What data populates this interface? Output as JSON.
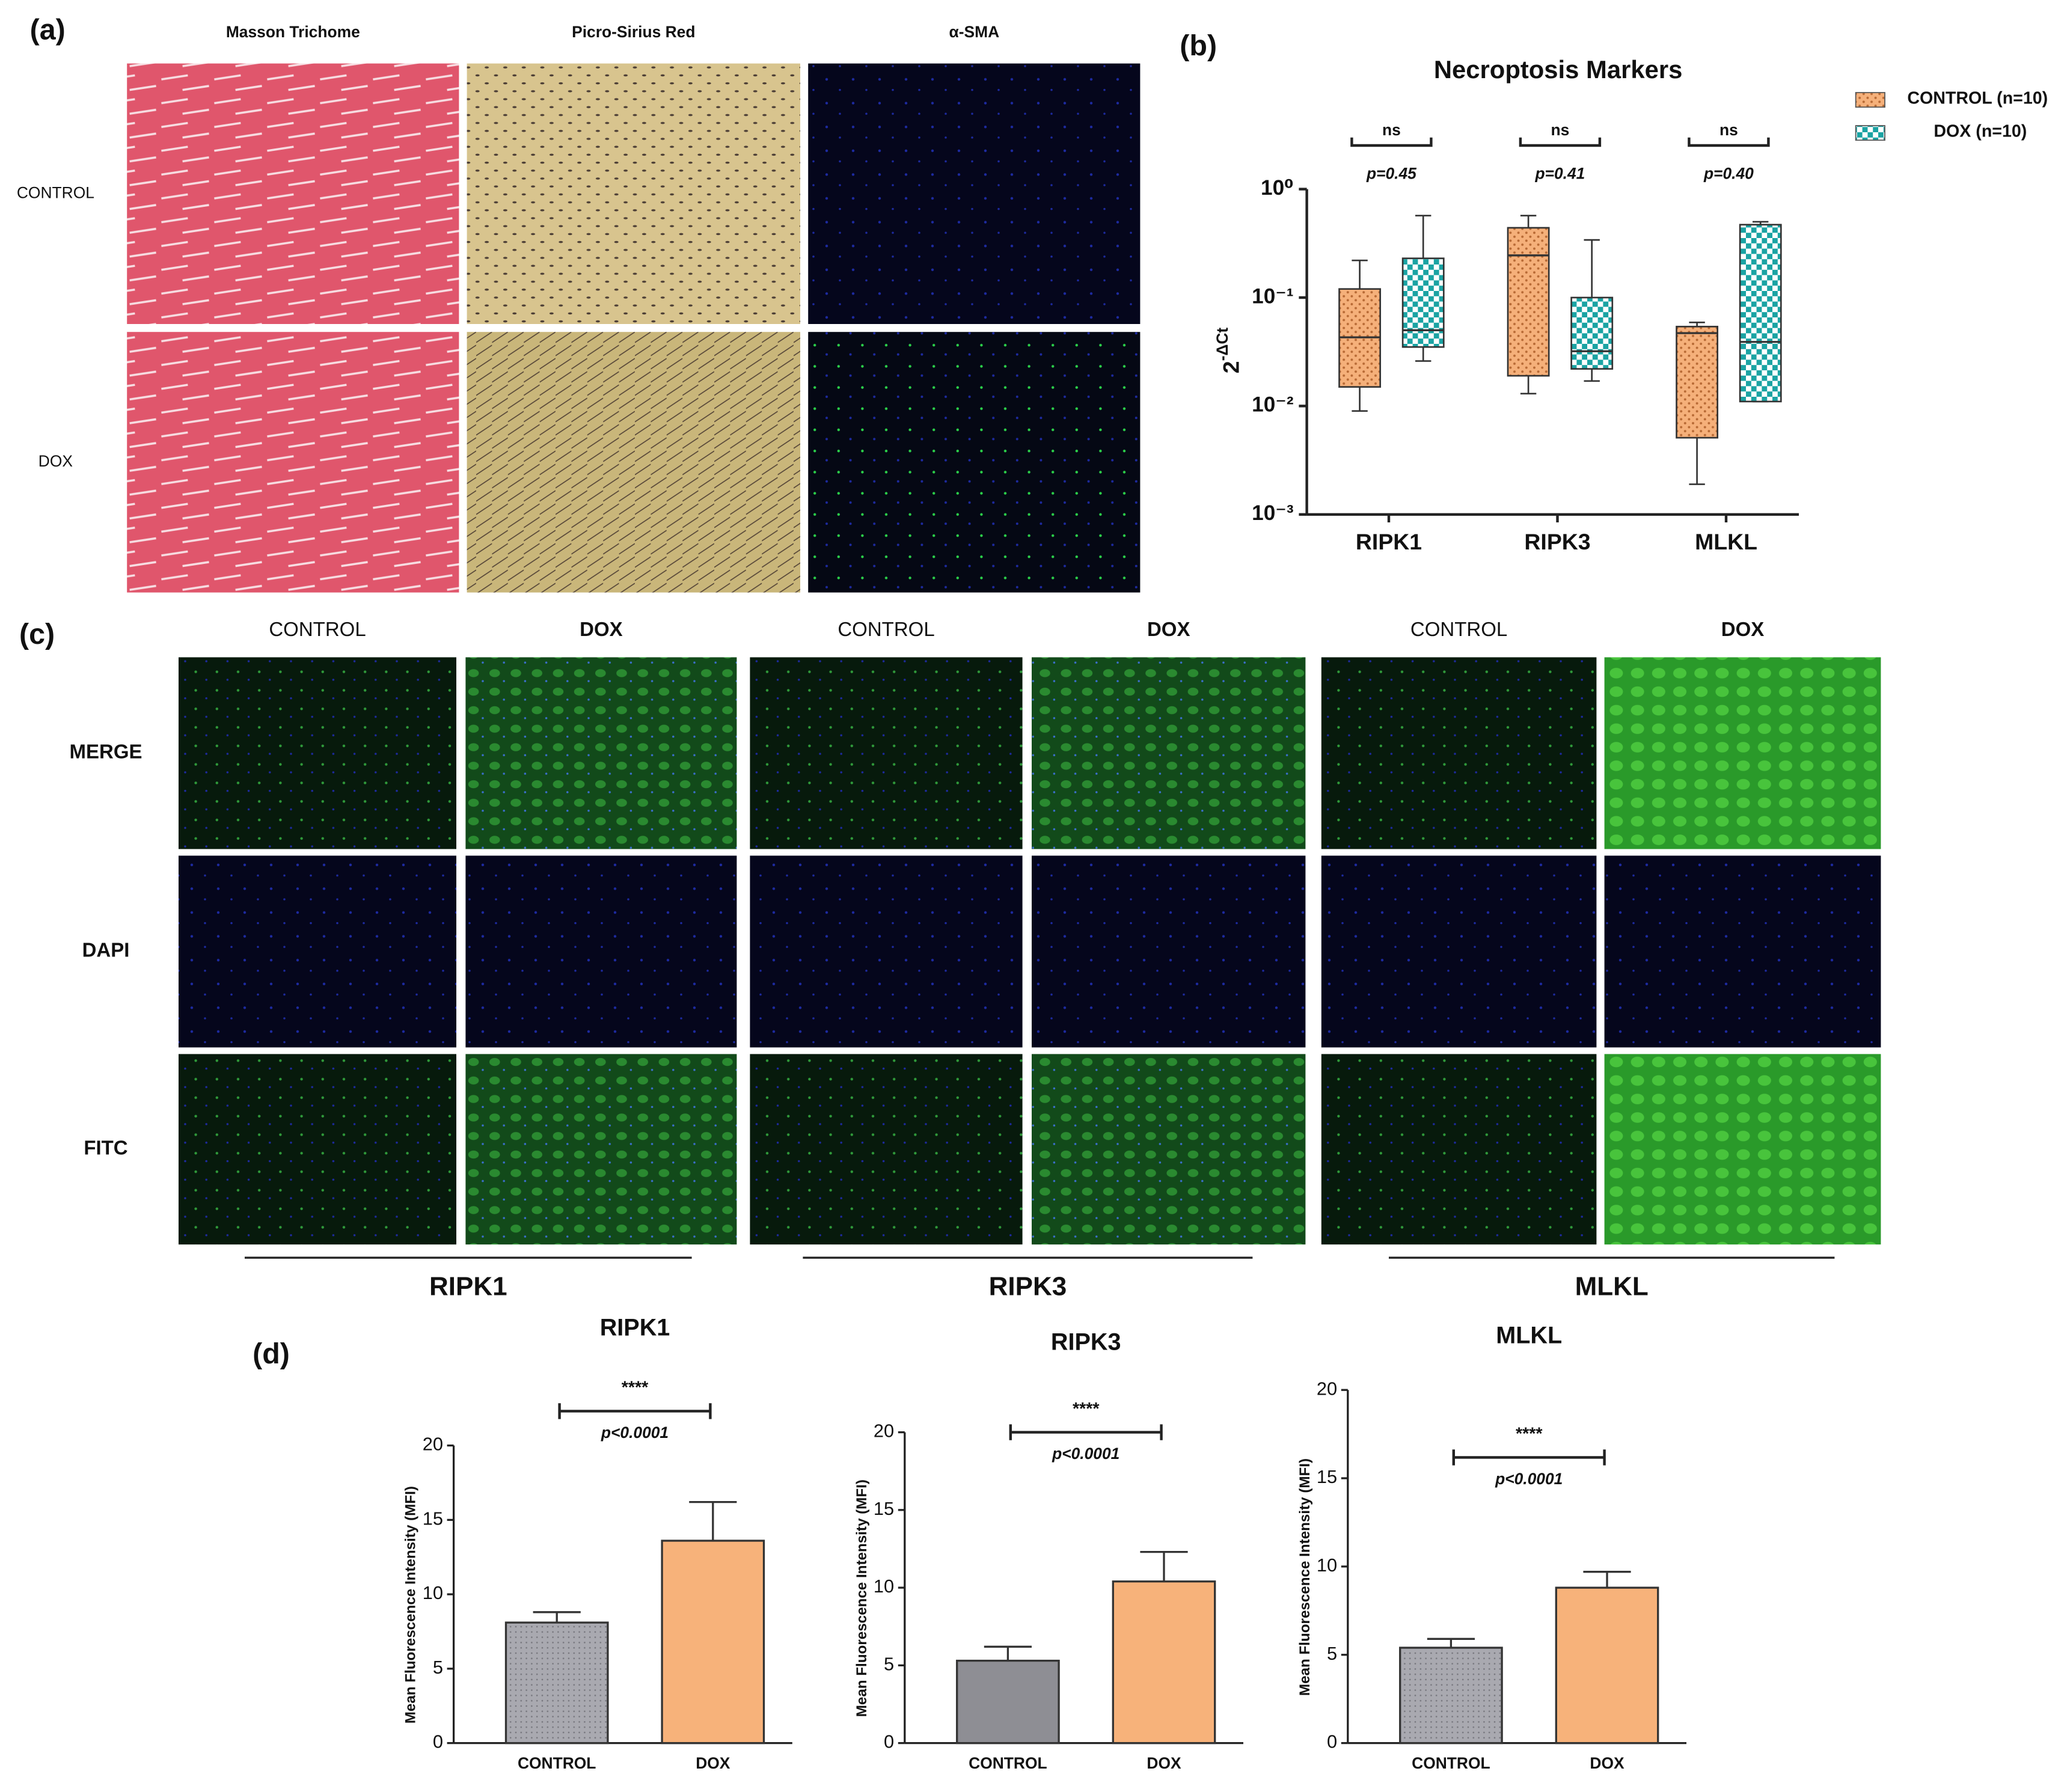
{
  "panels": {
    "a": {
      "label": "(a)",
      "columns": [
        "Masson Trichome",
        "Picro-Sirius Red",
        "α-SMA"
      ],
      "rows": [
        "CONTROL",
        "DOX"
      ]
    },
    "c": {
      "label": "(c)",
      "columns": [
        "CONTROL",
        "DOX",
        "CONTROL",
        "DOX",
        "CONTROL",
        "DOX"
      ],
      "rows": [
        "MERGE",
        "DAPI",
        "FITC"
      ],
      "groups": [
        "RIPK1",
        "RIPK3",
        "MLKL"
      ]
    },
    "d": {
      "label": "(d)"
    }
  },
  "chart_data": [
    {
      "type": "box",
      "panel_label": "(b)",
      "title": "Necroptosis Markers",
      "y_label": "2",
      "y_label_sup": "-ΔCt",
      "categories": [
        "RIPK1",
        "RIPK3",
        "MLKL"
      ],
      "log_scale": true,
      "ylim": [
        0.001,
        1
      ],
      "yticks": [
        {
          "value": 1,
          "label": "10⁰"
        },
        {
          "value": 0.1,
          "label": "10⁻¹"
        },
        {
          "value": 0.01,
          "label": "10⁻²"
        },
        {
          "value": 0.001,
          "label": "10⁻³"
        }
      ],
      "legend": "top-right",
      "series": [
        {
          "name": "CONTROL (n=10)",
          "color": "#f5b07a",
          "pattern": "dots",
          "min": [
            0.009,
            0.013,
            0.0019
          ],
          "q1": [
            0.015,
            0.019,
            0.0051
          ],
          "median": [
            0.043,
            0.245,
            0.047
          ],
          "q3": [
            0.12,
            0.44,
            0.054
          ],
          "max": [
            0.22,
            0.57,
            0.059
          ]
        },
        {
          "name": "DOX (n=10)",
          "color": "#1aa3a3",
          "pattern": "checker",
          "min": [
            0.026,
            0.017,
            0.011
          ],
          "q1": [
            0.035,
            0.022,
            0.011
          ],
          "median": [
            0.05,
            0.032,
            0.039
          ],
          "q3": [
            0.23,
            0.1,
            0.47
          ],
          "max": [
            0.57,
            0.34,
            0.5
          ]
        }
      ],
      "annotations": [
        {
          "text": "ns",
          "p": "p=0.45"
        },
        {
          "text": "ns",
          "p": "p=0.41"
        },
        {
          "text": "ns",
          "p": "p=0.40"
        }
      ]
    },
    {
      "type": "bar",
      "title": "RIPK1",
      "y_label": "Mean Fluorescence Intensity (MFI)",
      "categories": [
        "CONTROL",
        "DOX"
      ],
      "values": [
        8.1,
        13.6
      ],
      "errors": [
        0.7,
        2.6
      ],
      "colors": [
        "#a9a9b0",
        "#f7b27a"
      ],
      "ylim": [
        0,
        20
      ],
      "yticks": [
        0,
        5,
        10,
        15,
        20
      ],
      "annotation": {
        "stars": "****",
        "p": "p<0.0001"
      }
    },
    {
      "type": "bar",
      "title": "RIPK3",
      "y_label": "Mean Fluorescence Intensity (MFI)",
      "categories": [
        "CONTROL",
        "DOX"
      ],
      "values": [
        5.3,
        10.4
      ],
      "errors": [
        0.9,
        1.9
      ],
      "colors": [
        "#8e8e94",
        "#f7b27a"
      ],
      "ylim": [
        0,
        20
      ],
      "yticks": [
        0,
        5,
        10,
        15,
        20
      ],
      "annotation": {
        "stars": "****",
        "p": "p<0.0001"
      }
    },
    {
      "type": "bar",
      "title": "MLKL",
      "y_label": "Mean Fluorescence Intensity (MFI)",
      "categories": [
        "CONTROL",
        "DOX"
      ],
      "values": [
        5.4,
        8.8
      ],
      "errors": [
        0.5,
        0.9
      ],
      "colors": [
        "#a9a9b0",
        "#f7b27a"
      ],
      "ylim": [
        0,
        20
      ],
      "yticks": [
        0,
        5,
        10,
        15,
        20
      ],
      "annotation": {
        "stars": "****",
        "p": "p<0.0001"
      }
    }
  ]
}
